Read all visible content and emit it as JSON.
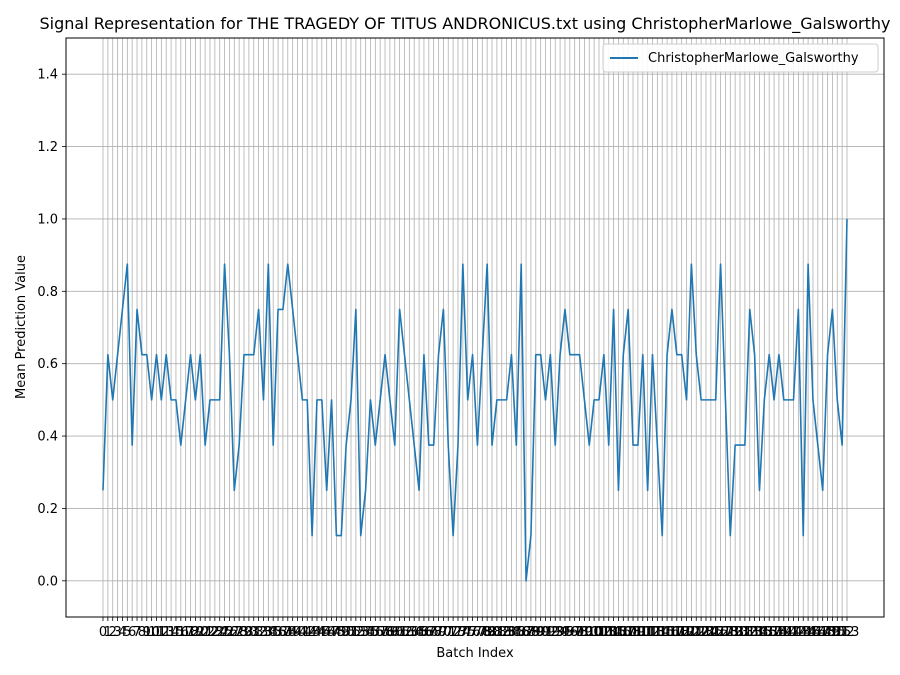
{
  "chart_data": {
    "type": "line",
    "title": "Signal Representation for THE TRAGEDY OF TITUS ANDRONICUS.txt using ChristopherMarlowe_Galsworthy",
    "xlabel": "Batch Index",
    "ylabel": "Mean Prediction Value",
    "ylim": [
      -0.1,
      1.5
    ],
    "yticks": [
      "0.0",
      "0.2",
      "0.4",
      "0.6",
      "0.8",
      "1.0",
      "1.2",
      "1.4"
    ],
    "grid": true,
    "legend_position": "top-right",
    "series": [
      {
        "name": "ChristopherMarlowe_Galsworthy",
        "color": "#1f77b4",
        "values": [
          0.25,
          0.625,
          0.5,
          0.625,
          0.75,
          0.875,
          0.375,
          0.75,
          0.625,
          0.625,
          0.5,
          0.625,
          0.5,
          0.625,
          0.5,
          0.5,
          0.375,
          0.5,
          0.625,
          0.5,
          0.625,
          0.375,
          0.5,
          0.5,
          0.5,
          0.875,
          0.625,
          0.25,
          0.375,
          0.625,
          0.625,
          0.625,
          0.75,
          0.5,
          0.875,
          0.375,
          0.75,
          0.75,
          0.875,
          0.75,
          0.625,
          0.5,
          0.5,
          0.125,
          0.5,
          0.5,
          0.25,
          0.5,
          0.125,
          0.125,
          0.375,
          0.5,
          0.75,
          0.125,
          0.25,
          0.5,
          0.375,
          0.5,
          0.625,
          0.5,
          0.375,
          0.75,
          0.625,
          0.5,
          0.375,
          0.25,
          0.625,
          0.375,
          0.375,
          0.625,
          0.75,
          0.375,
          0.125,
          0.375,
          0.875,
          0.5,
          0.625,
          0.375,
          0.625,
          0.875,
          0.375,
          0.5,
          0.5,
          0.5,
          0.625,
          0.375,
          0.875,
          0.0,
          0.125,
          0.625,
          0.625,
          0.5,
          0.625,
          0.375,
          0.625,
          0.75,
          0.625,
          0.625,
          0.625,
          0.5,
          0.375,
          0.5,
          0.5,
          0.625,
          0.375,
          0.75,
          0.25,
          0.625,
          0.75,
          0.375,
          0.375,
          0.625,
          0.25,
          0.625,
          0.375,
          0.125,
          0.625,
          0.75,
          0.625,
          0.625,
          0.5,
          0.875,
          0.625,
          0.5,
          0.5,
          0.5,
          0.5,
          0.875,
          0.5,
          0.125,
          0.375,
          0.375,
          0.375,
          0.75,
          0.625,
          0.25,
          0.5,
          0.625,
          0.5,
          0.625,
          0.5,
          0.5,
          0.5,
          0.75,
          0.125,
          0.875,
          0.5,
          0.375,
          0.25,
          0.625,
          0.75,
          0.5,
          0.375,
          1.0
        ]
      }
    ]
  }
}
